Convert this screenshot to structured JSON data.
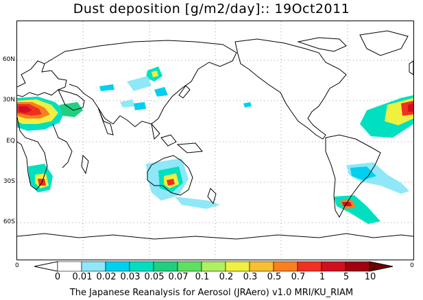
{
  "title": "Dust deposition [g/m2/day]:: 19Oct2011",
  "map": {
    "lat_labels": [
      "60N",
      "30N",
      "EQ",
      "30S",
      "60S"
    ],
    "edge_labels": {
      "left": "0",
      "right": "0"
    }
  },
  "colorbar": {
    "labels": [
      "0",
      "0.01",
      "0.02",
      "0.03",
      "0.05",
      "0.07",
      "0.1",
      "0.2",
      "0.3",
      "0.5",
      "0.7",
      "1",
      "5",
      "10"
    ],
    "colors": [
      "#ffffff",
      "#ffffff",
      "#8ee8f8",
      "#00d0f0",
      "#00e0c0",
      "#20d080",
      "#60e060",
      "#b0f060",
      "#f0f040",
      "#f8c030",
      "#f88020",
      "#f03020",
      "#d01020",
      "#a00010",
      "#700000"
    ]
  },
  "footer": "The Japanese Reanalysis for Aerosol (JRAero) v1.0 MRI/KU_RIAM"
}
